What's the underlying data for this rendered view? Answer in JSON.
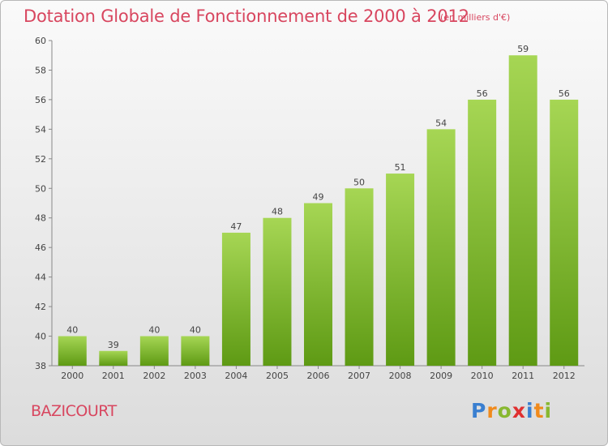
{
  "header": {
    "title": "Dotation Globale de Fonctionnement de 2000 à 2012",
    "subtitle": "(en milliers d'€)"
  },
  "footer": {
    "commune": "BAZICOURT",
    "logo_letters": [
      {
        "char": "P",
        "color": "#3a7fd0"
      },
      {
        "char": "r",
        "color": "#f08a1c"
      },
      {
        "char": "o",
        "color": "#88b830"
      },
      {
        "char": "x",
        "color": "#e03030"
      },
      {
        "char": "i",
        "color": "#3a7fd0"
      },
      {
        "char": "t",
        "color": "#f08a1c"
      },
      {
        "char": "i",
        "color": "#88b830"
      }
    ]
  },
  "chart_data": {
    "type": "bar",
    "title": "Dotation Globale de Fonctionnement de 2000 à 2012",
    "subtitle": "(en milliers d'€)",
    "categories": [
      "2000",
      "2001",
      "2002",
      "2003",
      "2004",
      "2005",
      "2006",
      "2007",
      "2008",
      "2009",
      "2010",
      "2011",
      "2012"
    ],
    "values": [
      40,
      39,
      40,
      40,
      47,
      48,
      49,
      50,
      51,
      54,
      56,
      59,
      56
    ],
    "ylim": [
      38,
      60
    ],
    "yticks": [
      38,
      40,
      42,
      44,
      46,
      48,
      50,
      52,
      54,
      56,
      58,
      60
    ],
    "grid": false,
    "legend": "none",
    "bar_color_top": "#a6d654",
    "bar_color_bottom": "#5e9a14"
  }
}
